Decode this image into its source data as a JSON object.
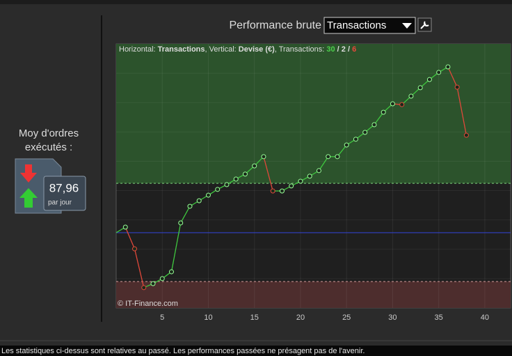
{
  "header": {
    "title": "Performance brute",
    "selector": "Transactions"
  },
  "side": {
    "label": "Moy d'ordres exécutés :",
    "average": {
      "value": 87.96,
      "label": "87,96"
    },
    "unit": "par jour"
  },
  "footer": "Les statistiques ci-dessus sont relatives au passé. Les performances passées ne présagent pas de l'avenir.",
  "chart_data": {
    "type": "line",
    "info": [
      {
        "text": "Horizontal: "
      },
      {
        "text": "Transactions",
        "bold": true
      },
      {
        "text": ", Vertical: "
      },
      {
        "text": "Devise (€)",
        "bold": true
      },
      {
        "text": ", Transactions: "
      },
      {
        "value": 30,
        "color": "#4cd04c",
        "bold": true
      },
      {
        "text": " / ",
        "bold": true
      },
      {
        "value": 2,
        "bold": true
      },
      {
        "text": " / ",
        "bold": true
      },
      {
        "value": 6,
        "color": "#e8483c",
        "bold": true
      }
    ],
    "watermark": "© IT-Finance.com",
    "x": [
      0,
      1,
      2,
      3,
      4,
      5,
      6,
      7,
      8,
      9,
      10,
      11,
      12,
      13,
      14,
      15,
      16,
      17,
      18,
      19,
      20,
      21,
      22,
      23,
      24,
      25,
      26,
      27,
      28,
      29,
      30,
      31,
      32,
      33,
      34,
      35,
      36,
      37,
      38
    ],
    "values": [
      28.5,
      30.6,
      22.4,
      7.7,
      9.2,
      11.1,
      13.7,
      32.2,
      38.5,
      40.6,
      42.7,
      44.9,
      46.7,
      48.8,
      50.7,
      53.8,
      57.3,
      44.3,
      44.3,
      46.2,
      48.0,
      49.9,
      52.0,
      57.3,
      57.3,
      61.7,
      63.9,
      66.5,
      69.4,
      74.1,
      77.3,
      77.0,
      80.2,
      83.4,
      86.5,
      89.2,
      91.3,
      83.6,
      65.4
    ],
    "up_color": "#3fc83f",
    "down_color": "#e0483a",
    "upper_threshold": 47.2,
    "lower_threshold": 10.0,
    "baseline": 28.5,
    "xlim": [
      0,
      42.8
    ],
    "ylim": [
      0,
      100
    ],
    "xticks": [
      5,
      10,
      15,
      20,
      25,
      30,
      35,
      40
    ],
    "grid": true
  }
}
